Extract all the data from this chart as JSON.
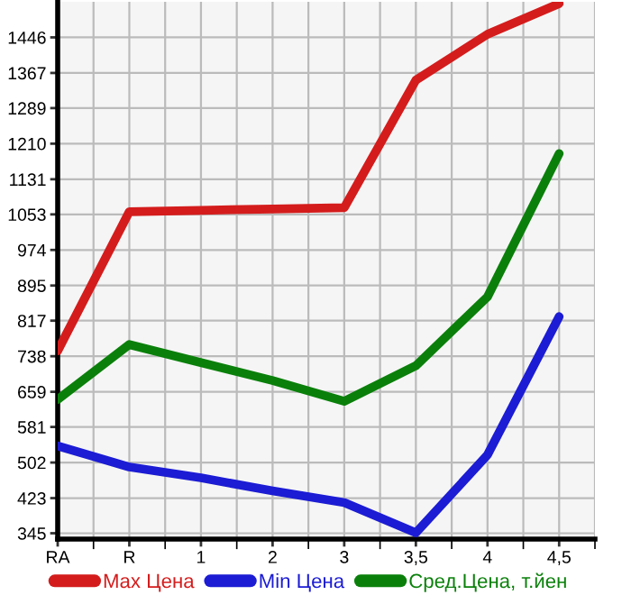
{
  "chart_data": {
    "type": "line",
    "categories": [
      "RA",
      "R",
      "1",
      "2",
      "3",
      "3,5",
      "4",
      "4,5"
    ],
    "series": [
      {
        "name": "Max Цена",
        "color": "#d41c1c",
        "values": [
          750,
          1059,
          1062,
          1065,
          1068,
          1351,
          1453,
          1521
        ]
      },
      {
        "name": "Min Цена",
        "color": "#1c1cd4",
        "values": [
          539,
          492,
          468,
          439,
          413,
          346,
          519,
          826
        ]
      },
      {
        "name": "Сред.Цена, т.йен",
        "color": "#0a800a",
        "values": [
          642,
          764,
          724,
          684,
          638,
          717,
          870,
          1188
        ]
      }
    ],
    "ylim": [
      332,
      1525
    ],
    "yticks": [
      345,
      423,
      502,
      581,
      659,
      738,
      817,
      895,
      974,
      1053,
      1131,
      1210,
      1289,
      1367,
      1446
    ],
    "grid": true,
    "legend": "bottom",
    "marker": "none",
    "line_style": "solid"
  }
}
